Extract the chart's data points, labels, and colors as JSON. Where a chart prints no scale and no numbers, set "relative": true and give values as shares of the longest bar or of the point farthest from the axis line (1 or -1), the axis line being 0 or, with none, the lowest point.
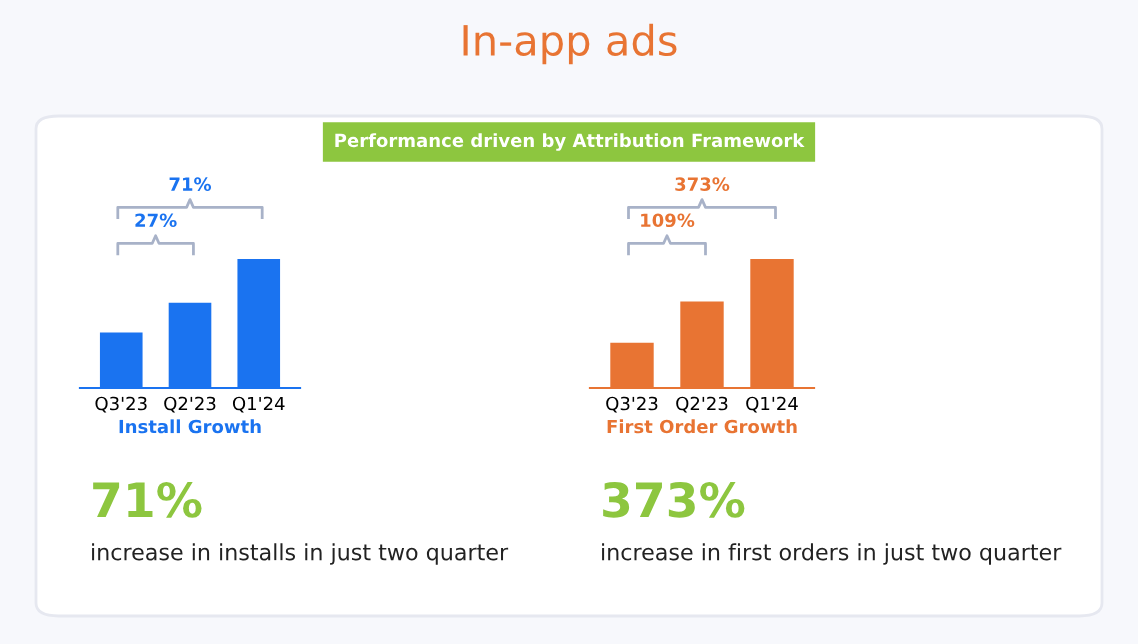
{
  "chart_data": [
    {
      "type": "other",
      "title": "In-app ads",
      "subtitle": "Performance driven by Attribution Framework"
    },
    {
      "type": "bar",
      "relative": true,
      "categories": [
        "Q3'23",
        "Q2'23",
        "Q1'24"
      ],
      "values": [
        0.43,
        0.66,
        1
      ],
      "color": "#1a73f0",
      "xlabel": "Install Growth",
      "grid": false,
      "legend": false,
      "annotations": [
        "27%",
        "71%",
        "71%",
        "increase in installs in just two quarter"
      ]
    },
    {
      "type": "bar",
      "relative": true,
      "categories": [
        "Q3'23",
        "Q2'23",
        "Q1'24"
      ],
      "values": [
        0.35,
        0.67,
        1
      ],
      "color": "#e87433",
      "xlabel": "First Order Growth",
      "grid": false,
      "legend": false,
      "annotations": [
        "109%",
        "373%",
        "373%",
        "increase in first orders in just two quarter"
      ]
    }
  ]
}
